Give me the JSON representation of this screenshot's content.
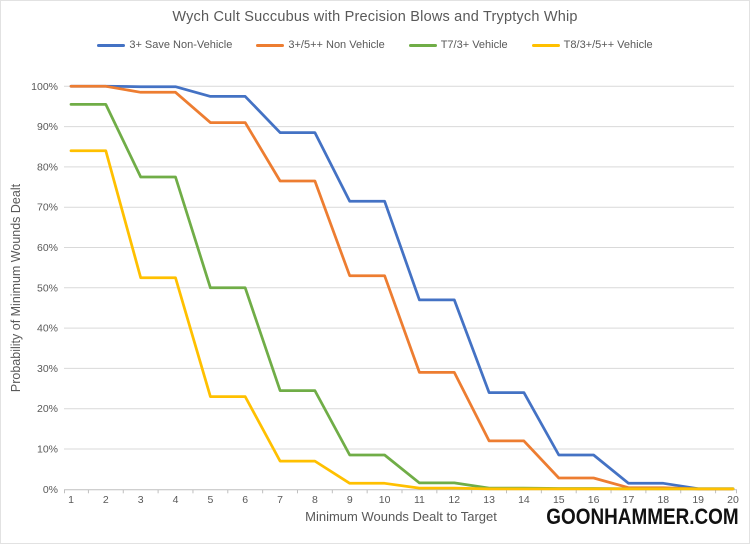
{
  "watermark": "GOONHAMMER.COM",
  "colors": {
    "grid": "#d9d9d9",
    "axis": "#bfbfbf",
    "text": "#595959",
    "watermark": "#111111"
  },
  "chart_data": {
    "type": "line",
    "title": "Wych Cult Succubus with Precision Blows and Tryptych Whip",
    "xlabel": "Minimum Wounds Dealt to Target",
    "ylabel": "Probability of Minimum Wounds Dealt",
    "x": [
      "1",
      "2",
      "3",
      "4",
      "5",
      "6",
      "7",
      "8",
      "9",
      "10",
      "11",
      "12",
      "13",
      "14",
      "15",
      "16",
      "17",
      "18",
      "19",
      "20"
    ],
    "y_ticks": [
      "0%",
      "10%",
      "20%",
      "30%",
      "40%",
      "50%",
      "60%",
      "70%",
      "80%",
      "90%",
      "100%"
    ],
    "ylim": [
      0,
      100
    ],
    "grid": "horizontal",
    "legend_position": "top",
    "series": [
      {
        "name": "3+ Save Non-Vehicle",
        "color": "#4472C4",
        "values": [
          100,
          100,
          99.9,
          99.9,
          97.5,
          97.5,
          88.5,
          88.5,
          71.5,
          71.5,
          47,
          47,
          24,
          24,
          8.5,
          8.5,
          1.5,
          1.5,
          0.15,
          0.15
        ]
      },
      {
        "name": "3+/5++ Non Vehicle",
        "color": "#ED7D31",
        "values": [
          100,
          100,
          98.5,
          98.5,
          91,
          91,
          76.5,
          76.5,
          53,
          53,
          29,
          29,
          12,
          12,
          2.8,
          2.8,
          0.4,
          0.4,
          0.1,
          0.1
        ]
      },
      {
        "name": "T7/3+ Vehicle",
        "color": "#70AD47",
        "values": [
          95.5,
          95.5,
          77.5,
          77.5,
          50,
          50,
          24.5,
          24.5,
          8.5,
          8.5,
          1.6,
          1.6,
          0.3,
          0.3,
          0.2,
          0.2,
          0.15,
          0.15,
          0.15,
          0.15
        ]
      },
      {
        "name": "T8/3+/5++ Vehicle",
        "color": "#FFC000",
        "values": [
          84,
          84,
          52.5,
          52.5,
          23,
          23,
          7,
          7,
          1.5,
          1.5,
          0.3,
          0.3,
          0.1,
          0.1,
          0.1,
          0.1,
          0.1,
          0.1,
          0.1,
          0.1
        ]
      }
    ]
  }
}
